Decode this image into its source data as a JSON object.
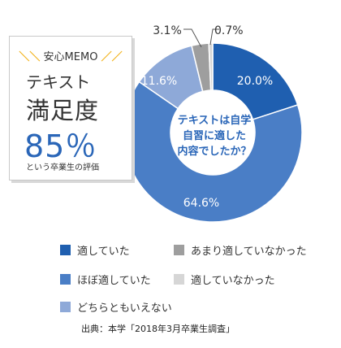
{
  "chart_data": {
    "type": "pie",
    "title": "",
    "categories": [
      "適していた",
      "ほぼ適していた",
      "どちらともいえない",
      "あまり適していなかった",
      "適していなかった"
    ],
    "values": [
      20.0,
      64.6,
      11.6,
      3.1,
      0.7
    ],
    "value_labels": [
      "20.0%",
      "64.6%",
      "11.6%",
      "3.1%",
      "0.7%"
    ],
    "colors": [
      "#1f5fb0",
      "#4a7ec6",
      "#8ea9d8",
      "#9e9e9e",
      "#d6d6d6"
    ],
    "center_text": [
      "テキストは自学",
      "自習に適した",
      "内容でしたか？"
    ],
    "legend_placement": "bottom"
  },
  "memo": {
    "title": "安心MEMO",
    "line1": "テキスト",
    "line2": "満足度",
    "percent": "85％",
    "footnote": "という卒業生の評価"
  },
  "source": "出典：本学「2018年3月卒業生調査」"
}
